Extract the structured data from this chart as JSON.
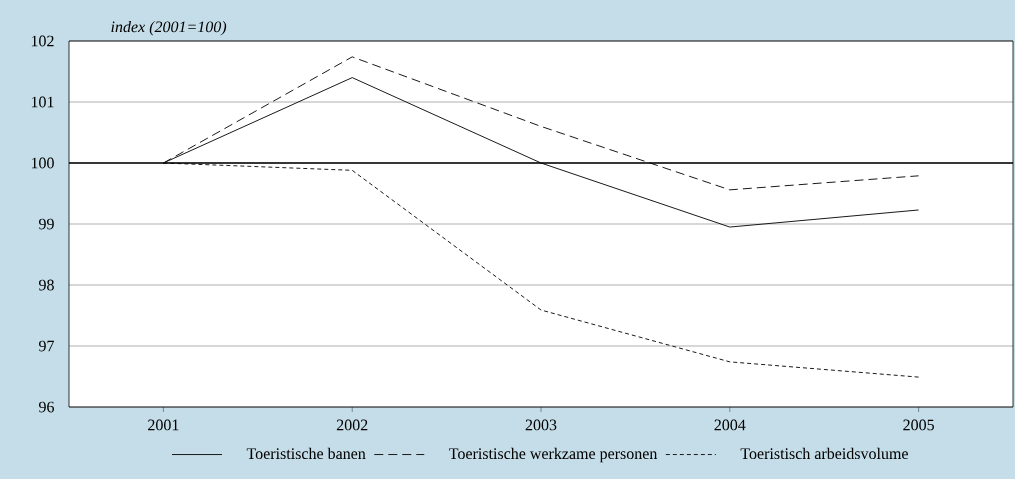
{
  "chart_data": {
    "type": "line",
    "ylabel": "index (2001=100)",
    "categories": [
      "2001",
      "2002",
      "2003",
      "2004",
      "2005"
    ],
    "series": [
      {
        "name": "Toeristische banen",
        "color": "#1a1a1a",
        "line_style": "solid",
        "values": [
          100,
          101.4,
          100.0,
          98.95,
          99.23
        ]
      },
      {
        "name": "Toeristische werkzame personen",
        "color": "#1a1a1a",
        "line_style": "dashed",
        "values": [
          100,
          101.74,
          100.6,
          99.56,
          99.79
        ]
      },
      {
        "name": "Toeristisch arbeidsvolume",
        "color": "#1a1a1a",
        "line_style": "dotted",
        "values": [
          100,
          99.88,
          97.59,
          96.74,
          96.49
        ]
      }
    ],
    "ylim": [
      96,
      102
    ],
    "yticks": [
      96,
      97,
      98,
      99,
      100,
      101,
      102
    ],
    "grid": "y",
    "legend": "bottom",
    "marker": "none",
    "ref_lines": [
      {
        "axis": "y",
        "value": 100
      }
    ]
  }
}
